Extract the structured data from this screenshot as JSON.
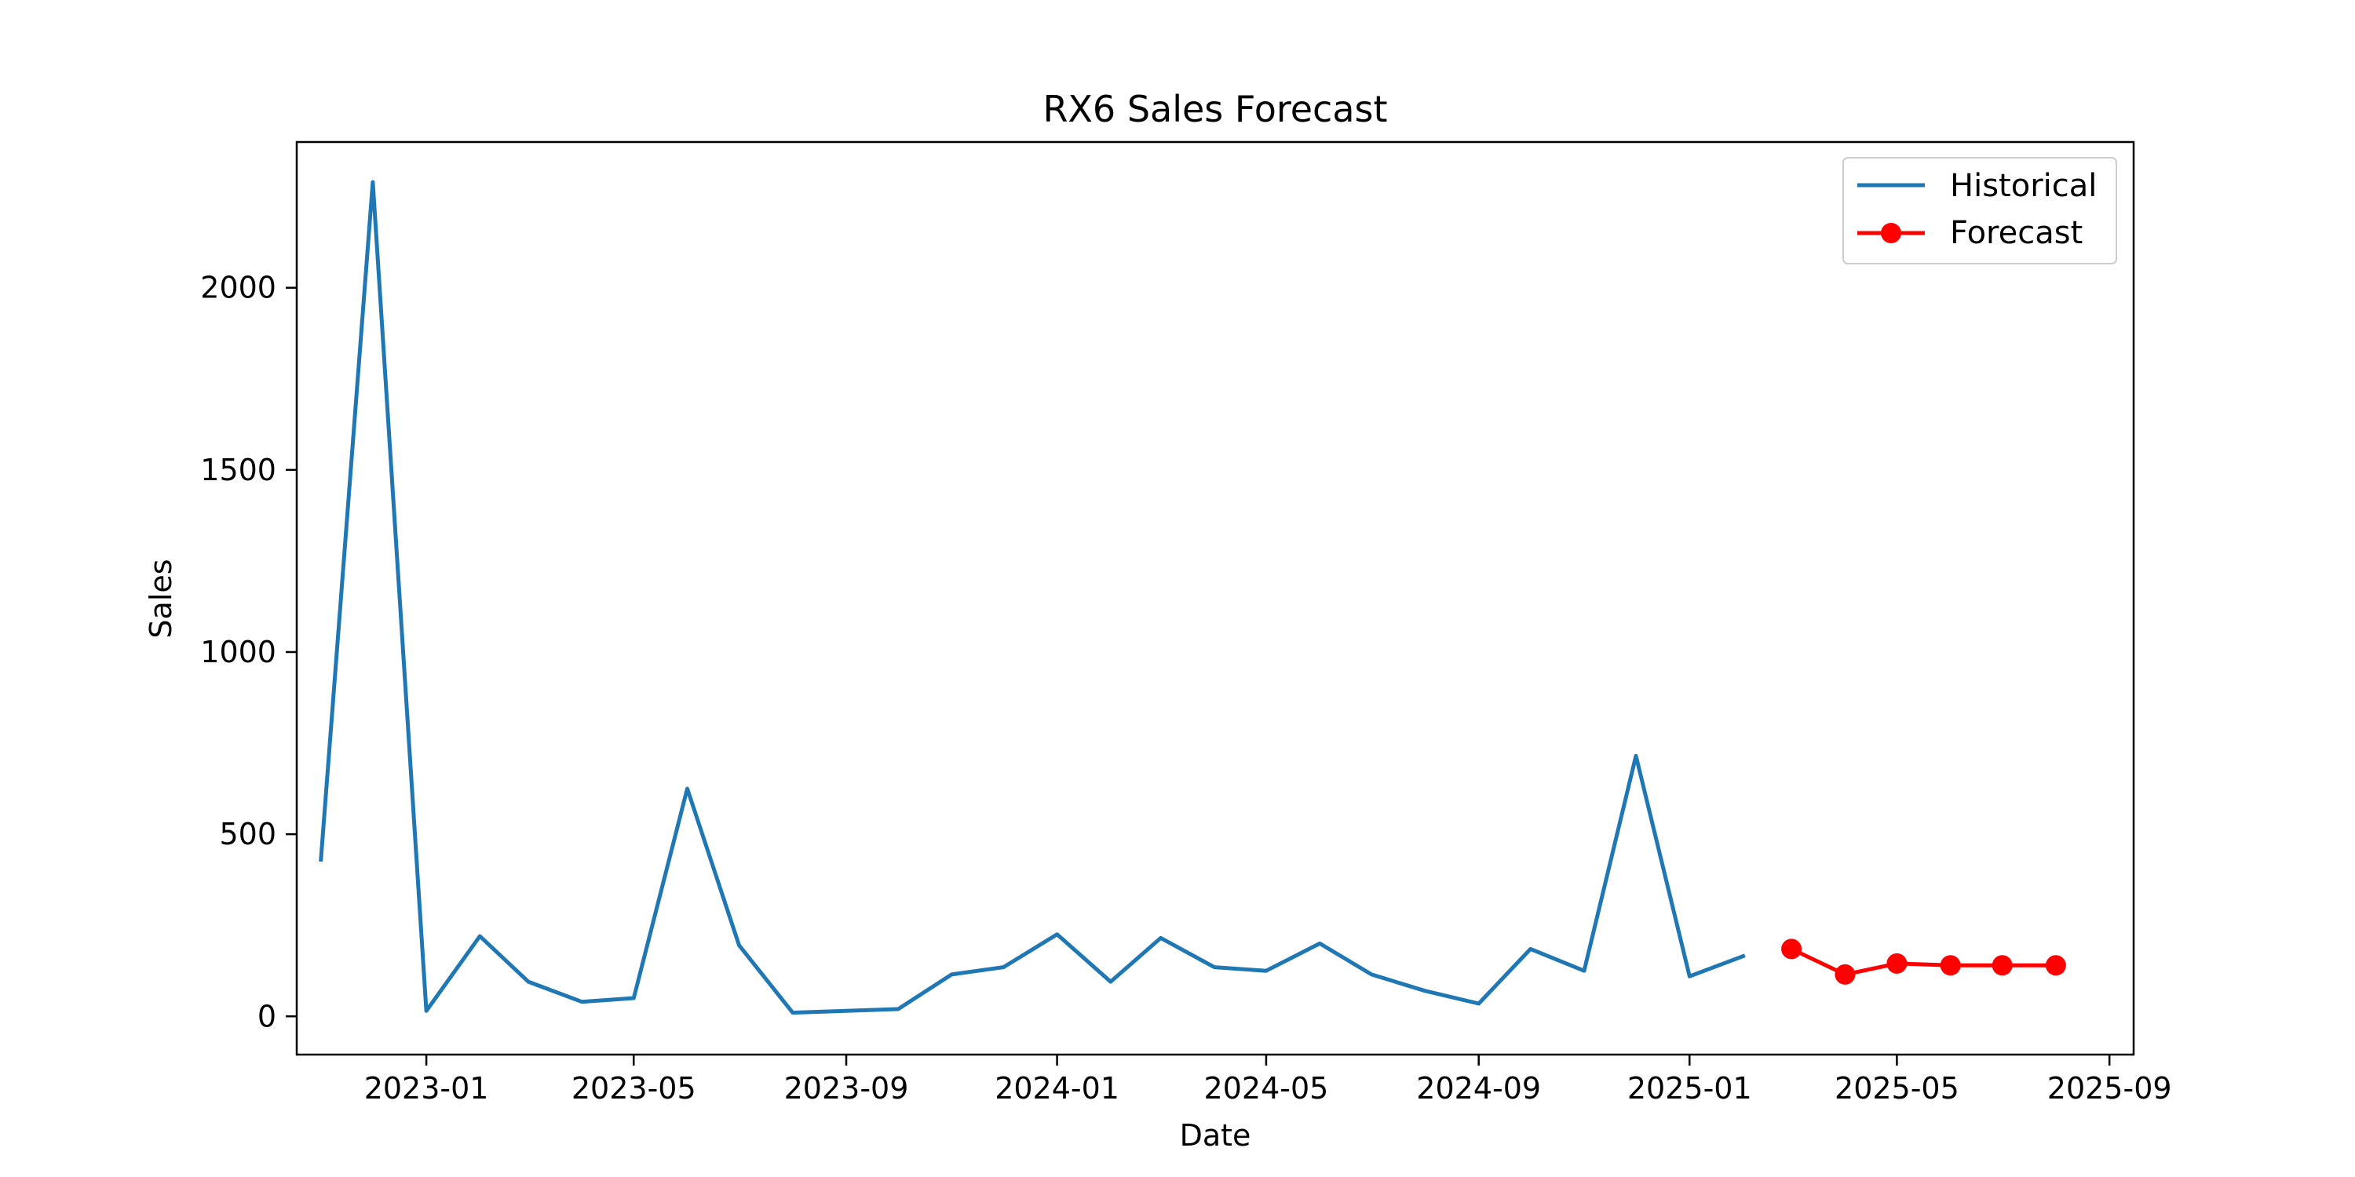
{
  "chart_data": {
    "type": "line",
    "title": "RX6 Sales Forecast",
    "xlabel": "Date",
    "ylabel": "Sales",
    "x_range": [
      "2022-10-18",
      "2025-09-15"
    ],
    "ylim": [
      -105,
      2400
    ],
    "grid": false,
    "legend": {
      "position": "top-right",
      "items": [
        "Historical",
        "Forecast"
      ]
    },
    "x_ticks": [
      "2023-01",
      "2023-05",
      "2023-09",
      "2024-01",
      "2024-05",
      "2024-09",
      "2025-01",
      "2025-05",
      "2025-09"
    ],
    "y_ticks": [
      0,
      500,
      1000,
      1500,
      2000
    ],
    "series": [
      {
        "name": "Historical",
        "color": "#1f77b4",
        "marker": "none",
        "points": [
          {
            "x": "2022-11-01",
            "y": 430
          },
          {
            "x": "2022-12-01",
            "y": 2290
          },
          {
            "x": "2023-01-01",
            "y": 15
          },
          {
            "x": "2023-02-01",
            "y": 220
          },
          {
            "x": "2023-03-01",
            "y": 95
          },
          {
            "x": "2023-04-01",
            "y": 40
          },
          {
            "x": "2023-05-01",
            "y": 50
          },
          {
            "x": "2023-06-01",
            "y": 625
          },
          {
            "x": "2023-07-01",
            "y": 195
          },
          {
            "x": "2023-08-01",
            "y": 10
          },
          {
            "x": "2023-09-01",
            "y": 15
          },
          {
            "x": "2023-10-01",
            "y": 20
          },
          {
            "x": "2023-11-01",
            "y": 115
          },
          {
            "x": "2023-12-01",
            "y": 135
          },
          {
            "x": "2024-01-01",
            "y": 225
          },
          {
            "x": "2024-02-01",
            "y": 95
          },
          {
            "x": "2024-03-01",
            "y": 215
          },
          {
            "x": "2024-04-01",
            "y": 135
          },
          {
            "x": "2024-05-01",
            "y": 125
          },
          {
            "x": "2024-06-01",
            "y": 200
          },
          {
            "x": "2024-07-01",
            "y": 115
          },
          {
            "x": "2024-08-01",
            "y": 70
          },
          {
            "x": "2024-09-01",
            "y": 35
          },
          {
            "x": "2024-10-01",
            "y": 185
          },
          {
            "x": "2024-11-01",
            "y": 125
          },
          {
            "x": "2024-12-01",
            "y": 715
          },
          {
            "x": "2025-01-01",
            "y": 110
          },
          {
            "x": "2025-02-01",
            "y": 165
          }
        ]
      },
      {
        "name": "Forecast",
        "color": "#ff0000",
        "marker": "circle",
        "points": [
          {
            "x": "2025-03-01",
            "y": 185
          },
          {
            "x": "2025-04-01",
            "y": 115
          },
          {
            "x": "2025-05-01",
            "y": 145
          },
          {
            "x": "2025-06-01",
            "y": 140
          },
          {
            "x": "2025-07-01",
            "y": 140
          },
          {
            "x": "2025-08-01",
            "y": 140
          }
        ]
      }
    ]
  }
}
